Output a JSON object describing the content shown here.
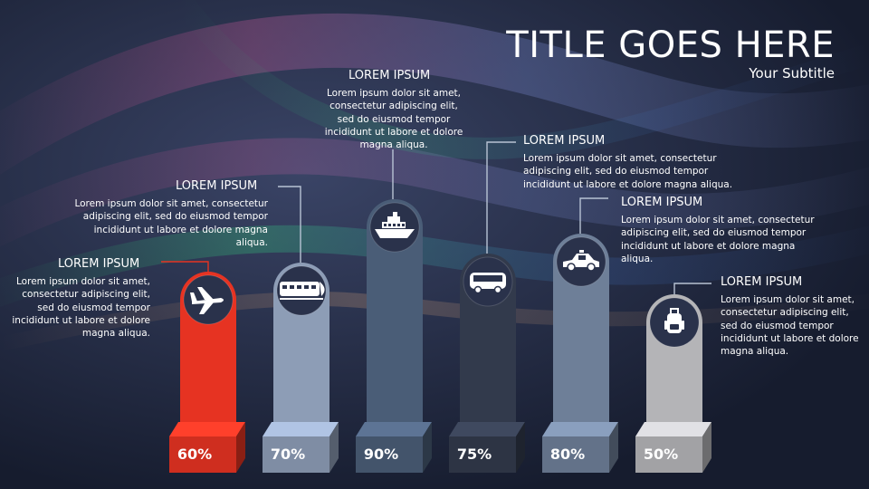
{
  "title": "TITLE GOES HERE",
  "subtitle": "Your Subtitle",
  "colors": {
    "background": "#1b2236",
    "airplane": "#e63322",
    "train": "#8d9db6",
    "ship": "#4a5d77",
    "bus": "#323a4c",
    "car": "#6e7f98",
    "backpack": "#b4b4b7",
    "icon_circle": "#2a324b"
  },
  "callouts": [
    {
      "id": "airplane",
      "heading": "LOREM IPSUM",
      "text": "Lorem ipsum dolor sit amet, consectetur adipiscing elit, sed do eiusmod tempor incididunt ut labore et dolore magna aliqua."
    },
    {
      "id": "train",
      "heading": "LOREM IPSUM",
      "text": "Lorem ipsum dolor sit amet, consectetur adipiscing elit, sed do eiusmod tempor incididunt ut labore et dolore magna aliqua."
    },
    {
      "id": "ship",
      "heading": "LOREM IPSUM",
      "text": "Lorem ipsum dolor sit amet, consectetur adipiscing elit, sed do eiusmod tempor incididunt ut labore et dolore magna aliqua."
    },
    {
      "id": "bus",
      "heading": "LOREM IPSUM",
      "text": "Lorem ipsum dolor sit amet, consectetur adipiscing elit, sed do eiusmod tempor incididunt ut labore et dolore magna aliqua."
    },
    {
      "id": "car",
      "heading": "LOREM IPSUM",
      "text": "Lorem ipsum dolor sit amet, consectetur adipiscing elit, sed do eiusmod tempor incididunt ut labore et dolore magna aliqua."
    },
    {
      "id": "backpack",
      "heading": "LOREM IPSUM",
      "text": "Lorem ipsum dolor sit amet, consectetur adipiscing elit, sed do eiusmod tempor incididunt ut labore et dolore magna aliqua."
    }
  ],
  "bars": [
    {
      "id": "airplane",
      "icon": "airplane-icon",
      "value": 60,
      "label": "60%"
    },
    {
      "id": "train",
      "icon": "train-icon",
      "value": 70,
      "label": "70%"
    },
    {
      "id": "ship",
      "icon": "ship-icon",
      "value": 90,
      "label": "90%"
    },
    {
      "id": "bus",
      "icon": "bus-icon",
      "value": 75,
      "label": "75%"
    },
    {
      "id": "car",
      "icon": "car-icon",
      "value": 80,
      "label": "80%"
    },
    {
      "id": "backpack",
      "icon": "backpack-icon",
      "value": 50,
      "label": "50%"
    }
  ]
}
